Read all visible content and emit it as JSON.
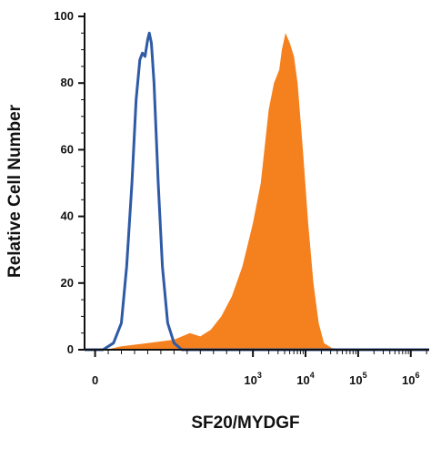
{
  "chart_data": {
    "type": "area",
    "title": "",
    "xlabel": "SF20/MYDGF",
    "ylabel": "Relative Cell Number",
    "x_scale": "biexponential (log beyond 10^2)",
    "xlim_log10": [
      -0.2,
      6.35
    ],
    "ylim": [
      0,
      100
    ],
    "y_ticks": [
      0,
      20,
      40,
      60,
      80,
      100
    ],
    "x_ticks": [
      {
        "value": 0,
        "base": "0",
        "exp": ""
      },
      {
        "value": 1000,
        "base": "10",
        "exp": "3"
      },
      {
        "value": 10000,
        "base": "10",
        "exp": "4"
      },
      {
        "value": 100000,
        "base": "10",
        "exp": "5"
      },
      {
        "value": 1000000,
        "base": "10",
        "exp": "6"
      }
    ],
    "grid": false,
    "legend": "none",
    "series": [
      {
        "style": "outline",
        "color": "#2f5aa6",
        "points": [
          [
            -0.2,
            0
          ],
          [
            0.15,
            0
          ],
          [
            0.35,
            2
          ],
          [
            0.5,
            8
          ],
          [
            0.6,
            25
          ],
          [
            0.7,
            50
          ],
          [
            0.78,
            75
          ],
          [
            0.85,
            87
          ],
          [
            0.9,
            89
          ],
          [
            0.95,
            88
          ],
          [
            1.0,
            93
          ],
          [
            1.03,
            95
          ],
          [
            1.07,
            92
          ],
          [
            1.12,
            80
          ],
          [
            1.2,
            50
          ],
          [
            1.28,
            25
          ],
          [
            1.38,
            8
          ],
          [
            1.5,
            2
          ],
          [
            1.65,
            0
          ],
          [
            6.35,
            0
          ]
        ]
      },
      {
        "style": "filled",
        "color": "#f5801e",
        "points": [
          [
            0.2,
            0
          ],
          [
            0.5,
            1
          ],
          [
            1.0,
            2
          ],
          [
            1.5,
            3
          ],
          [
            1.8,
            5
          ],
          [
            2.0,
            4
          ],
          [
            2.2,
            6
          ],
          [
            2.4,
            10
          ],
          [
            2.6,
            16
          ],
          [
            2.8,
            25
          ],
          [
            3.0,
            38
          ],
          [
            3.15,
            50
          ],
          [
            3.3,
            72
          ],
          [
            3.4,
            80
          ],
          [
            3.5,
            84
          ],
          [
            3.55,
            90
          ],
          [
            3.62,
            95
          ],
          [
            3.7,
            92
          ],
          [
            3.78,
            88
          ],
          [
            3.85,
            80
          ],
          [
            3.95,
            60
          ],
          [
            4.05,
            38
          ],
          [
            4.15,
            20
          ],
          [
            4.25,
            8
          ],
          [
            4.35,
            2
          ],
          [
            4.5,
            0.5
          ],
          [
            5.0,
            0
          ]
        ]
      }
    ]
  }
}
